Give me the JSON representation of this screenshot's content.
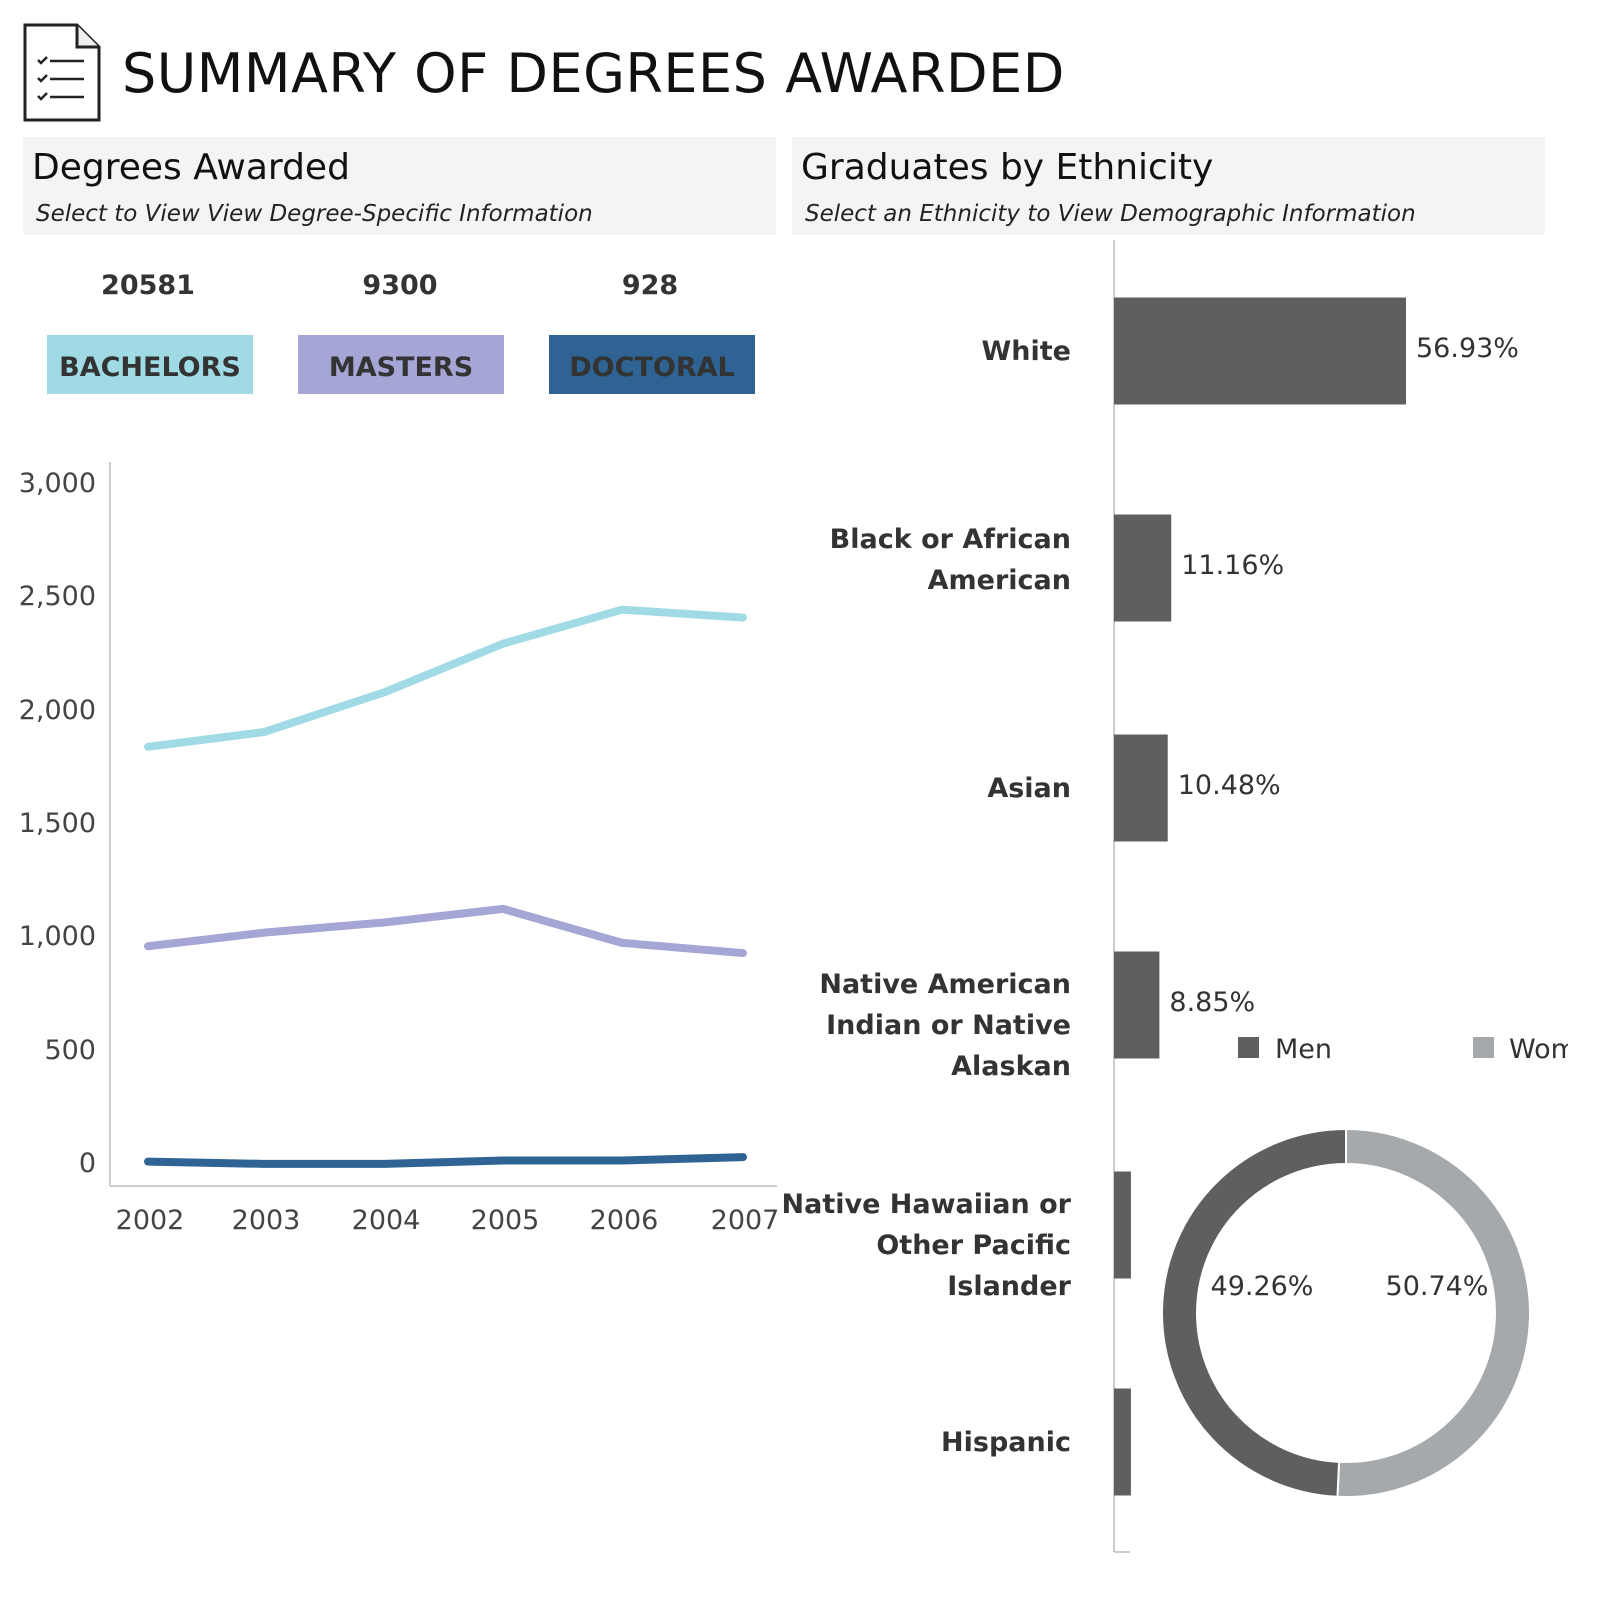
{
  "header": {
    "title": "SUMMARY OF DEGREES AWARDED",
    "icon": "checklist-document-icon"
  },
  "degrees_panel": {
    "title": "Degrees Awarded",
    "subtitle": "Select to View View Degree-Specific Information",
    "totals": [
      {
        "label": "BACHELORS",
        "count": "20581",
        "color": "#a0dae4"
      },
      {
        "label": "MASTERS",
        "count": "9300",
        "color": "#a5a5d6"
      },
      {
        "label": "DOCTORAL",
        "count": "928",
        "color": "#2e6393"
      }
    ]
  },
  "ethnicity_panel": {
    "title": "Graduates by Ethnicity",
    "subtitle": "Select an Ethnicity to View Demographic Information"
  },
  "chart_data": [
    {
      "type": "line",
      "x": [
        "2002",
        "2003",
        "2004",
        "2005",
        "2006",
        "2007"
      ],
      "ylim": [
        0,
        3000
      ],
      "yticks": [
        "0",
        "500",
        "1,000",
        "1,500",
        "2,000",
        "2,500",
        "3,000"
      ],
      "ytick_values": [
        0,
        500,
        1000,
        1500,
        2000,
        2500,
        3000
      ],
      "grid": false,
      "series": [
        {
          "name": "BACHELORS",
          "color": "#a0dae4",
          "values": [
            1845,
            1910,
            2085,
            2300,
            2450,
            2415
          ]
        },
        {
          "name": "MASTERS",
          "color": "#a5a5d6",
          "values": [
            965,
            1025,
            1070,
            1130,
            980,
            935
          ]
        },
        {
          "name": "DOCTORAL",
          "color": "#2e6393",
          "values": [
            15,
            5,
            5,
            20,
            20,
            35
          ]
        }
      ]
    },
    {
      "type": "bar",
      "orientation": "horizontal",
      "bar_color": "#5f5f5f",
      "categories": [
        "White",
        "Black or African American",
        "Asian",
        "Native American Indian or Native Alaskan",
        "Native Hawaiian or Other Pacific Islander",
        "Hispanic"
      ],
      "category_lines": [
        [
          "White"
        ],
        [
          "Black or African",
          "American"
        ],
        [
          "Asian"
        ],
        [
          "Native American",
          "Indian or Native",
          "Alaskan"
        ],
        [
          "Native Hawaiian or",
          "Other Pacific Islander"
        ],
        [
          "Hispanic"
        ]
      ],
      "values": [
        56.93,
        11.16,
        10.48,
        8.85,
        3.3,
        3.3
      ],
      "labels": [
        "56.93%",
        "11.16%",
        "10.48%",
        "8.85%",
        "",
        ""
      ]
    },
    {
      "type": "pie",
      "donut": true,
      "legend_position": "top",
      "slices": [
        {
          "name": "Men",
          "value": 49.26,
          "label": "49.26%",
          "color": "#5f5f5f"
        },
        {
          "name": "Women",
          "value": 50.74,
          "label": "50.74%",
          "color": "#a5a9ab"
        }
      ]
    }
  ]
}
